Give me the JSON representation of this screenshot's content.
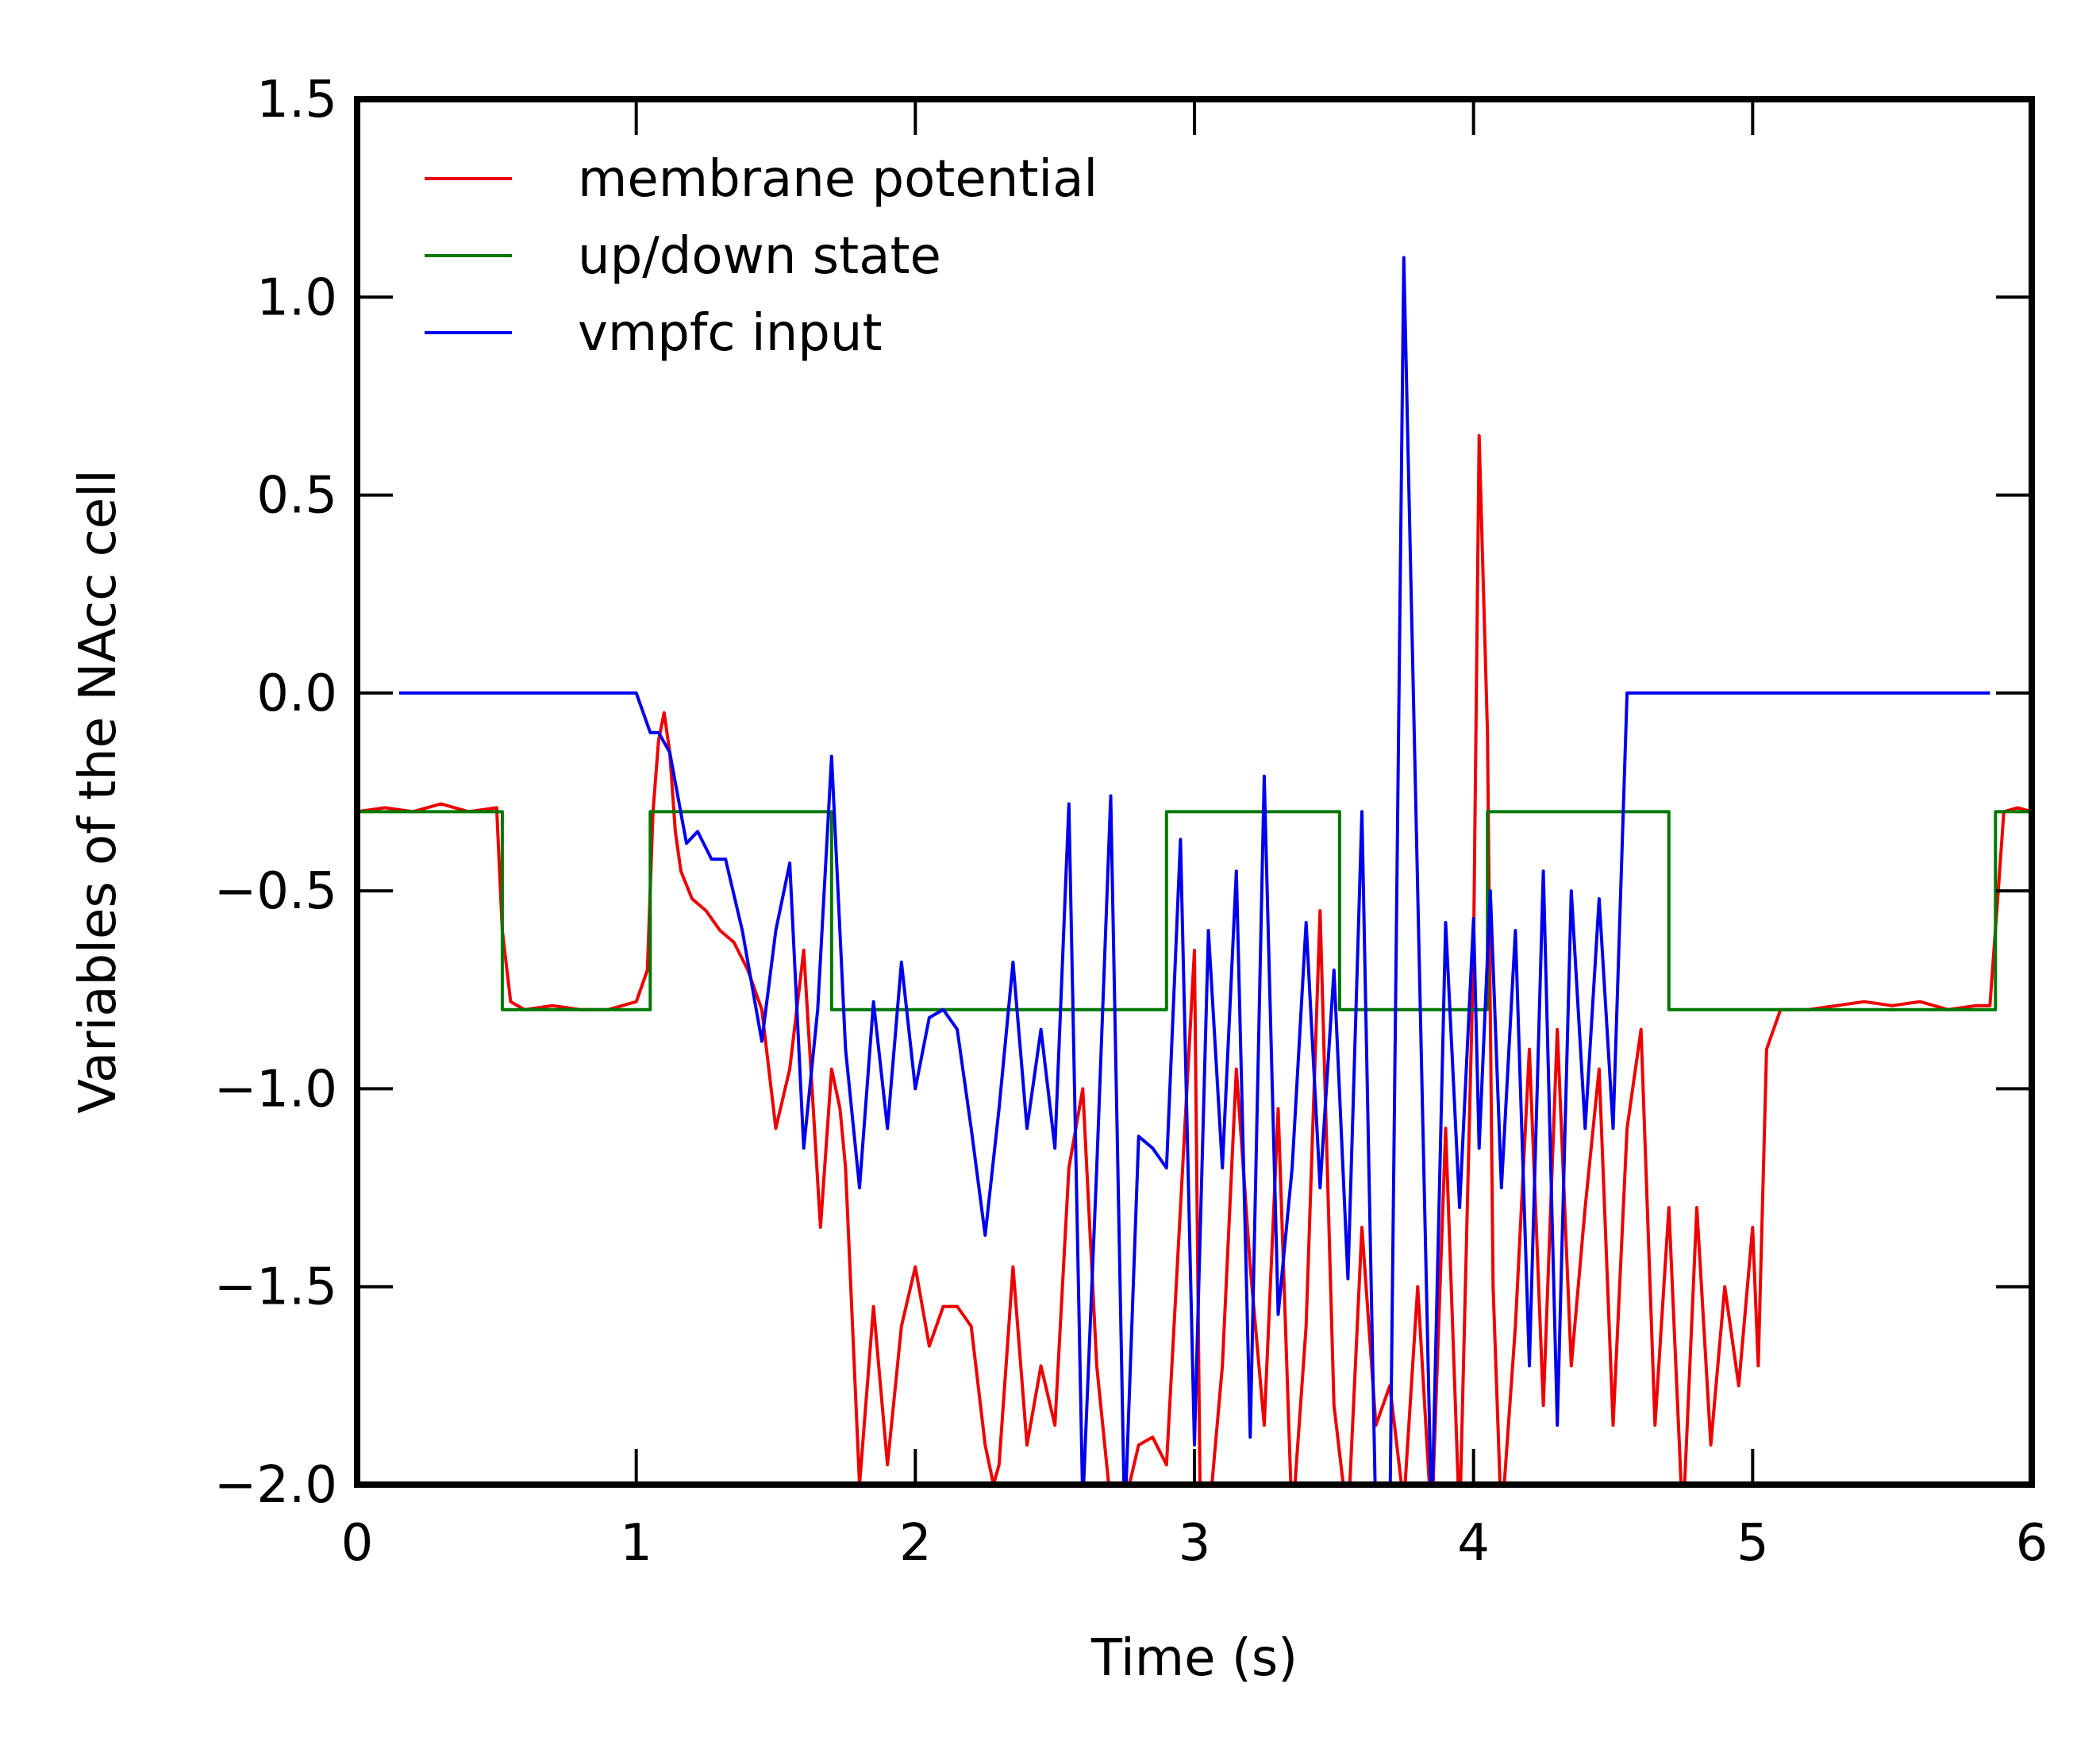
{
  "chart_data": {
    "type": "line",
    "xlabel": "Time (s)",
    "ylabel": "Variables of the NAcc cell",
    "xlim": [
      0,
      6
    ],
    "ylim": [
      -2.0,
      1.5
    ],
    "xticks": [
      0,
      1,
      2,
      3,
      4,
      5,
      6
    ],
    "yticks": [
      1.5,
      1.0,
      0.5,
      0.0,
      -0.5,
      -1.0,
      -1.5,
      -2.0
    ],
    "xtick_labels": [
      "0",
      "1",
      "2",
      "3",
      "4",
      "5",
      "6"
    ],
    "ytick_labels": [
      "1.5",
      "1.0",
      "0.5",
      "0.0",
      "−0.5",
      "−1.0",
      "−1.5",
      "−2.0"
    ],
    "grid": false,
    "legend_position": "top-left",
    "series": [
      {
        "name": "membrane potential",
        "color": "#ee0000",
        "x": [
          0.0,
          0.1,
          0.2,
          0.3,
          0.4,
          0.5,
          0.52,
          0.55,
          0.6,
          0.7,
          0.8,
          0.9,
          1.0,
          1.04,
          1.06,
          1.08,
          1.1,
          1.12,
          1.14,
          1.16,
          1.2,
          1.25,
          1.3,
          1.35,
          1.4,
          1.45,
          1.5,
          1.55,
          1.6,
          1.63,
          1.66,
          1.7,
          1.73,
          1.75,
          1.8,
          1.85,
          1.9,
          1.95,
          2.0,
          2.05,
          2.1,
          2.15,
          2.2,
          2.25,
          2.28,
          2.3,
          2.35,
          2.4,
          2.45,
          2.5,
          2.55,
          2.6,
          2.65,
          2.7,
          2.75,
          2.8,
          2.85,
          2.9,
          2.95,
          3.0,
          3.02,
          3.05,
          3.1,
          3.15,
          3.2,
          3.25,
          3.3,
          3.35,
          3.4,
          3.45,
          3.5,
          3.55,
          3.6,
          3.65,
          3.7,
          3.75,
          3.8,
          3.85,
          3.9,
          3.95,
          4.0,
          4.02,
          4.05,
          4.07,
          4.1,
          4.15,
          4.2,
          4.25,
          4.3,
          4.35,
          4.4,
          4.45,
          4.5,
          4.55,
          4.6,
          4.65,
          4.7,
          4.75,
          4.8,
          4.85,
          4.9,
          4.95,
          5.0,
          5.02,
          5.05,
          5.1,
          5.2,
          5.3,
          5.4,
          5.5,
          5.6,
          5.7,
          5.8,
          5.85,
          5.88,
          5.9,
          5.95,
          6.0
        ],
        "y": [
          -0.3,
          -0.29,
          -0.3,
          -0.28,
          -0.3,
          -0.29,
          -0.6,
          -0.78,
          -0.8,
          -0.79,
          -0.8,
          -0.8,
          -0.78,
          -0.7,
          -0.3,
          -0.12,
          -0.05,
          -0.15,
          -0.35,
          -0.45,
          -0.52,
          -0.55,
          -0.6,
          -0.63,
          -0.7,
          -0.8,
          -1.1,
          -0.95,
          -0.65,
          -1.0,
          -1.35,
          -0.95,
          -1.05,
          -1.2,
          -2.0,
          -1.55,
          -1.95,
          -1.6,
          -1.45,
          -1.65,
          -1.55,
          -1.55,
          -1.6,
          -1.9,
          -2.0,
          -1.95,
          -1.45,
          -1.9,
          -1.7,
          -1.85,
          -1.2,
          -1.0,
          -1.7,
          -2.05,
          -2.05,
          -1.9,
          -1.88,
          -1.95,
          -1.3,
          -0.65,
          -2.0,
          -2.1,
          -1.7,
          -0.95,
          -1.45,
          -1.85,
          -1.05,
          -2.1,
          -1.6,
          -0.55,
          -1.8,
          -2.1,
          -1.35,
          -1.85,
          -1.75,
          -2.05,
          -1.5,
          -2.1,
          -1.1,
          -2.1,
          -0.65,
          0.65,
          -0.1,
          -1.5,
          -2.1,
          -1.6,
          -0.9,
          -1.8,
          -0.85,
          -1.7,
          -1.3,
          -0.95,
          -1.85,
          -1.1,
          -0.85,
          -1.85,
          -1.3,
          -2.1,
          -1.3,
          -1.9,
          -1.5,
          -1.75,
          -1.35,
          -1.7,
          -0.9,
          -0.8,
          -0.8,
          -0.79,
          -0.78,
          -0.79,
          -0.78,
          -0.8,
          -0.79,
          -0.79,
          -0.5,
          -0.3,
          -0.29,
          -0.3
        ]
      },
      {
        "name": "up/down state",
        "color": "#007700",
        "x": [
          0.0,
          0.52,
          0.52,
          1.05,
          1.05,
          1.7,
          1.7,
          2.9,
          2.9,
          3.52,
          3.52,
          4.05,
          4.05,
          4.7,
          4.7,
          5.87,
          5.87,
          6.0
        ],
        "y": [
          -0.3,
          -0.3,
          -0.8,
          -0.8,
          -0.3,
          -0.3,
          -0.8,
          -0.8,
          -0.3,
          -0.3,
          -0.8,
          -0.8,
          -0.3,
          -0.3,
          -0.8,
          -0.8,
          -0.3,
          -0.3
        ]
      },
      {
        "name": "vmpfc input",
        "color": "#0000ee",
        "x": [
          0.15,
          1.0,
          1.05,
          1.08,
          1.12,
          1.18,
          1.22,
          1.27,
          1.32,
          1.38,
          1.45,
          1.5,
          1.55,
          1.6,
          1.65,
          1.7,
          1.75,
          1.8,
          1.85,
          1.9,
          1.95,
          2.0,
          2.05,
          2.1,
          2.15,
          2.2,
          2.25,
          2.3,
          2.35,
          2.4,
          2.45,
          2.5,
          2.55,
          2.6,
          2.65,
          2.7,
          2.75,
          2.8,
          2.85,
          2.9,
          2.95,
          3.0,
          3.05,
          3.1,
          3.15,
          3.2,
          3.25,
          3.3,
          3.35,
          3.4,
          3.45,
          3.5,
          3.55,
          3.6,
          3.65,
          3.7,
          3.75,
          3.8,
          3.85,
          3.9,
          3.95,
          4.0,
          4.02,
          4.06,
          4.1,
          4.15,
          4.2,
          4.25,
          4.3,
          4.35,
          4.4,
          4.45,
          4.5,
          4.55,
          4.6,
          4.65,
          4.7,
          4.75,
          4.8,
          4.85,
          4.9,
          4.95,
          5.0,
          5.01,
          5.01,
          5.1,
          5.5,
          5.85
        ],
        "y": [
          0.0,
          0.0,
          -0.1,
          -0.1,
          -0.15,
          -0.38,
          -0.35,
          -0.42,
          -0.42,
          -0.6,
          -0.88,
          -0.6,
          -0.43,
          -1.15,
          -0.8,
          -0.16,
          -0.9,
          -1.25,
          -0.78,
          -1.1,
          -0.68,
          -1.0,
          -0.82,
          -0.8,
          -0.85,
          -1.1,
          -1.37,
          -1.05,
          -0.68,
          -1.1,
          -0.85,
          -1.15,
          -0.28,
          -2.05,
          -1.2,
          -0.26,
          -2.1,
          -1.12,
          -1.15,
          -1.2,
          -0.37,
          -1.9,
          -0.6,
          -1.2,
          -0.45,
          -1.88,
          -0.21,
          -1.57,
          -1.2,
          -0.58,
          -1.25,
          -0.7,
          -1.48,
          -0.3,
          -2.1,
          -2.1,
          1.1,
          -0.5,
          -2.1,
          -0.58,
          -1.3,
          -0.57,
          -1.15,
          -0.5,
          -1.25,
          -0.6,
          -1.7,
          -0.45,
          -1.85,
          -0.5,
          -1.1,
          -0.52,
          -1.1,
          0.0,
          0.0,
          0.0,
          0.0,
          0.0,
          0.0,
          0.0,
          0.0,
          0.0,
          0.0,
          0.0,
          0.0,
          0.0,
          0.0,
          0.0
        ]
      }
    ]
  }
}
